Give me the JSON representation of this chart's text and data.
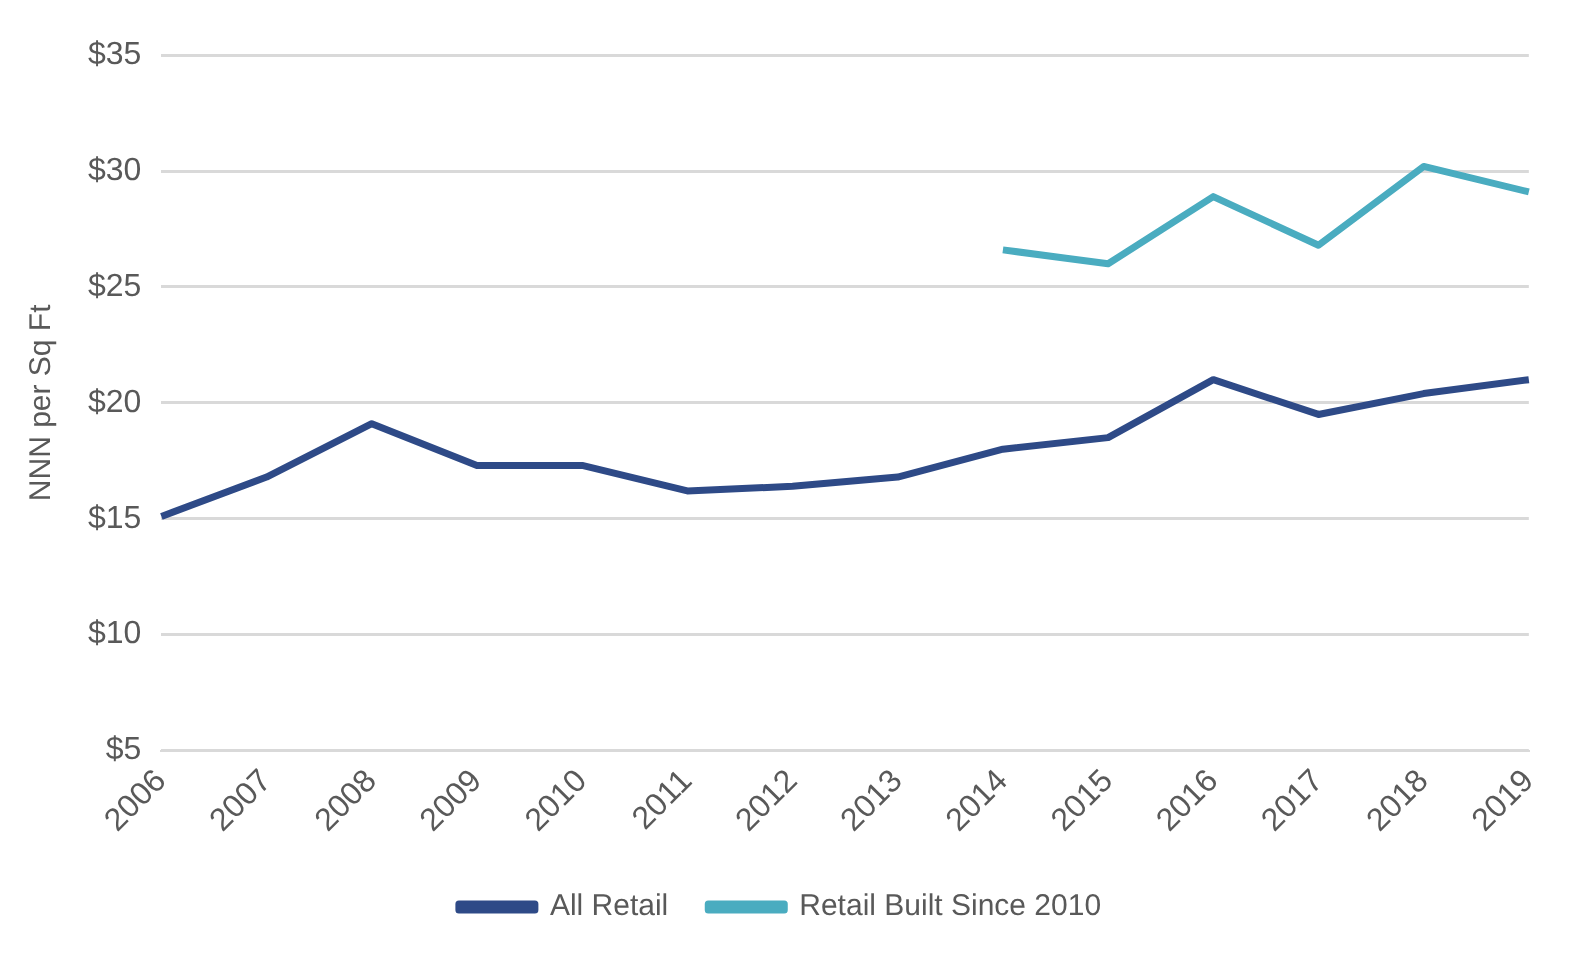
{
  "chart_data": {
    "type": "line",
    "ylabel": "NNN per Sq Ft",
    "categories": [
      "2006",
      "2007",
      "2008",
      "2009",
      "2010",
      "2011",
      "2012",
      "2013",
      "2014",
      "2015",
      "2016",
      "2017",
      "2018",
      "2019"
    ],
    "series": [
      {
        "name": "All Retail",
        "color": "#2e4a87",
        "values": [
          15.1,
          16.8,
          19.1,
          17.3,
          17.3,
          16.2,
          16.4,
          16.8,
          18.0,
          18.5,
          21.0,
          19.5,
          20.4,
          21.0
        ]
      },
      {
        "name": "Retail Built Since 2010",
        "color": "#4aacc0",
        "values": [
          null,
          null,
          null,
          null,
          null,
          null,
          null,
          null,
          26.6,
          26.0,
          28.9,
          26.8,
          30.2,
          29.1
        ]
      }
    ],
    "ylim": [
      5,
      35
    ],
    "yticks": [
      {
        "value": 5,
        "label": "$5"
      },
      {
        "value": 10,
        "label": "$10"
      },
      {
        "value": 15,
        "label": "$15"
      },
      {
        "value": 20,
        "label": "$20"
      },
      {
        "value": 25,
        "label": "$25"
      },
      {
        "value": 30,
        "label": "$30"
      },
      {
        "value": 35,
        "label": "$35"
      }
    ],
    "grid": "y",
    "legend": "bottom",
    "marker": "none",
    "line_style": "solid"
  }
}
